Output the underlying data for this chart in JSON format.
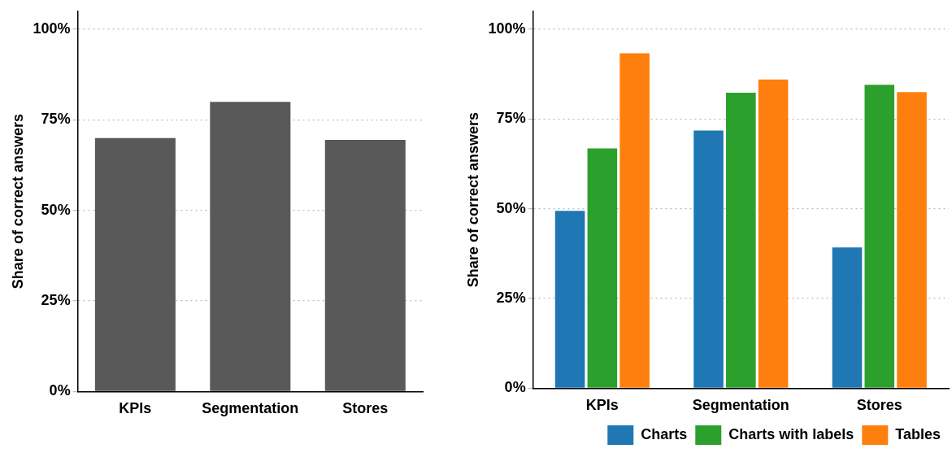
{
  "chart_data": [
    {
      "type": "bar",
      "categories": [
        "KPIs",
        "Segmentation",
        "Stores"
      ],
      "values": [
        70,
        80,
        69.5
      ],
      "color": "#595959",
      "ylabel": "Share of correct answers",
      "ylim": [
        0,
        105
      ],
      "yticks": [
        {
          "value": 0,
          "label": "0%"
        },
        {
          "value": 25,
          "label": "25%"
        },
        {
          "value": 50,
          "label": "50%"
        },
        {
          "value": 75,
          "label": "75%"
        },
        {
          "value": 100,
          "label": "100%"
        }
      ],
      "grid": "y",
      "legend": false
    },
    {
      "type": "bar",
      "categories": [
        "KPIs",
        "Segmentation",
        "Stores"
      ],
      "series": [
        {
          "name": "Charts",
          "color": "#1f77b4",
          "values": [
            49.4,
            71.8,
            39.2
          ]
        },
        {
          "name": "Charts with labels",
          "color": "#2ca02c",
          "values": [
            66.8,
            82.3,
            84.5
          ]
        },
        {
          "name": "Tables",
          "color": "#ff7f0e",
          "values": [
            93.3,
            86,
            82.5
          ]
        }
      ],
      "ylabel": "Share of correct answers",
      "ylim": [
        0,
        105
      ],
      "yticks": [
        {
          "value": 0,
          "label": "0%"
        },
        {
          "value": 25,
          "label": "25%"
        },
        {
          "value": 50,
          "label": "50%"
        },
        {
          "value": 75,
          "label": "75%"
        },
        {
          "value": 100,
          "label": "100%"
        }
      ],
      "grid": "y",
      "legend": "bottom"
    }
  ]
}
